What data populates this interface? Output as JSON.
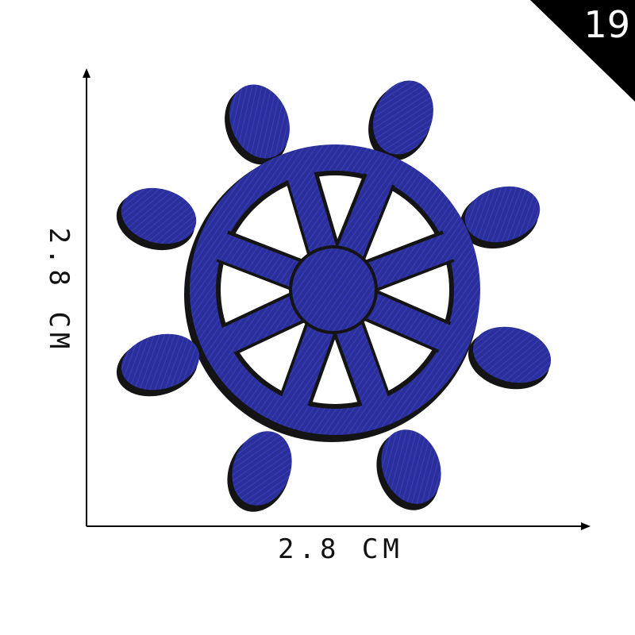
{
  "badge": {
    "number": "19"
  },
  "dimensions": {
    "height_label": "2.8 CM",
    "width_label": "2.8 CM"
  },
  "colors": {
    "thread": "#2b2f9c",
    "backing": "#141414",
    "arrow": "#000000",
    "background": "#ffffff"
  },
  "product": {
    "subject": "ship-wheel-embroidered-patch"
  }
}
